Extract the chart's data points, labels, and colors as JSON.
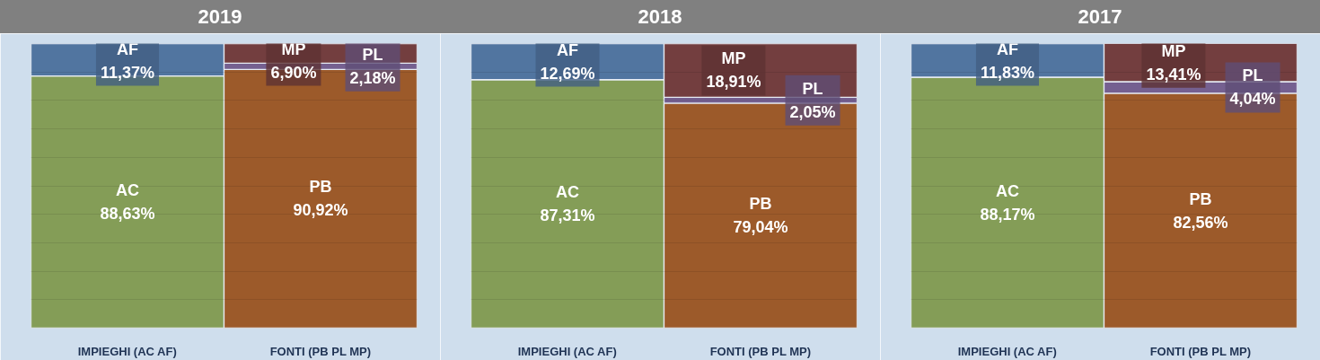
{
  "chart_data": [
    {
      "type": "bar",
      "title": "2019",
      "categories": [
        "IMPIEGHI (AC AF)",
        "FONTI (PB PL MP)"
      ],
      "stacked": true,
      "ylim": [
        0,
        100
      ],
      "yticks": [
        10,
        20,
        30,
        40,
        50,
        60,
        70,
        80,
        90
      ],
      "grid": "y",
      "tick_labels": "x",
      "series": [
        {
          "name": "AC",
          "color": "#849d57",
          "values": [
            88.63,
            null
          ],
          "value_labels": [
            "88,63%",
            null
          ]
        },
        {
          "name": "AF",
          "color": "#5175a0",
          "values": [
            11.37,
            null
          ],
          "value_labels": [
            "11,37%",
            null
          ]
        },
        {
          "name": "PB",
          "color": "#9c5a2a",
          "values": [
            null,
            90.92
          ],
          "value_labels": [
            null,
            "90,92%"
          ]
        },
        {
          "name": "PL",
          "color": "#756090",
          "values": [
            null,
            2.18
          ],
          "value_labels": [
            null,
            "2,18%"
          ]
        },
        {
          "name": "MP",
          "color": "#733e3f",
          "values": [
            null,
            6.9
          ],
          "value_labels": [
            null,
            "6,90%"
          ]
        }
      ]
    },
    {
      "type": "bar",
      "title": "2018",
      "categories": [
        "IMPIEGHI (AC AF)",
        "FONTI (PB PL MP)"
      ],
      "stacked": true,
      "ylim": [
        0,
        100
      ],
      "yticks": [
        10,
        20,
        30,
        40,
        50,
        60,
        70,
        80,
        90
      ],
      "grid": "y",
      "tick_labels": "x",
      "series": [
        {
          "name": "AC",
          "color": "#849d57",
          "values": [
            87.31,
            null
          ],
          "value_labels": [
            "87,31%",
            null
          ]
        },
        {
          "name": "AF",
          "color": "#5175a0",
          "values": [
            12.69,
            null
          ],
          "value_labels": [
            "12,69%",
            null
          ]
        },
        {
          "name": "PB",
          "color": "#9c5a2a",
          "values": [
            null,
            79.04
          ],
          "value_labels": [
            null,
            "79,04%"
          ]
        },
        {
          "name": "PL",
          "color": "#756090",
          "values": [
            null,
            2.05
          ],
          "value_labels": [
            null,
            "2,05%"
          ]
        },
        {
          "name": "MP",
          "color": "#733e3f",
          "values": [
            null,
            18.91
          ],
          "value_labels": [
            null,
            "18,91%"
          ]
        }
      ]
    },
    {
      "type": "bar",
      "title": "2017",
      "categories": [
        "IMPIEGHI (AC AF)",
        "FONTI (PB PL MP)"
      ],
      "stacked": true,
      "ylim": [
        0,
        100
      ],
      "yticks": [
        10,
        20,
        30,
        40,
        50,
        60,
        70,
        80,
        90
      ],
      "grid": "y",
      "tick_labels": "x",
      "series": [
        {
          "name": "AC",
          "color": "#849d57",
          "values": [
            88.17,
            null
          ],
          "value_labels": [
            "88,17%",
            null
          ]
        },
        {
          "name": "AF",
          "color": "#5175a0",
          "values": [
            11.83,
            null
          ],
          "value_labels": [
            "11,83%",
            null
          ]
        },
        {
          "name": "PB",
          "color": "#9c5a2a",
          "values": [
            null,
            82.56
          ],
          "value_labels": [
            null,
            "82,56%"
          ]
        },
        {
          "name": "PL",
          "color": "#756090",
          "values": [
            null,
            4.04
          ],
          "value_labels": [
            null,
            "4,04%"
          ]
        },
        {
          "name": "MP",
          "color": "#733e3f",
          "values": [
            null,
            13.41
          ],
          "value_labels": [
            null,
            "13,41%"
          ]
        }
      ]
    }
  ]
}
